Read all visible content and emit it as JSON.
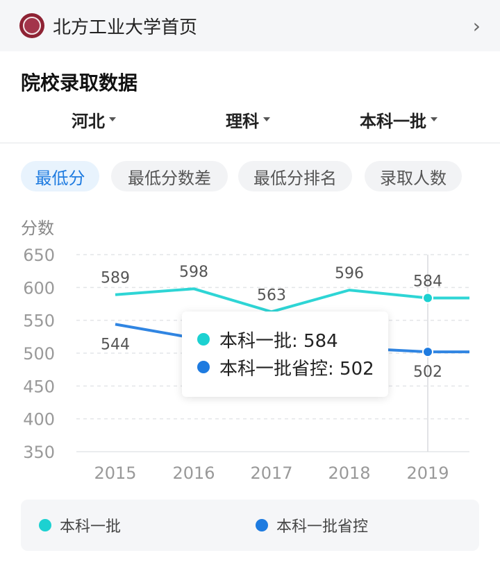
{
  "header": {
    "title": "北方工业大学首页",
    "logo_icon": "university-seal-icon",
    "chevron_icon": "chevron-right-icon"
  },
  "section": {
    "title": "院校录取数据"
  },
  "filters": [
    {
      "label": "河北"
    },
    {
      "label": "理科"
    },
    {
      "label": "本科一批"
    }
  ],
  "tabs": [
    {
      "label": "最低分",
      "active": true
    },
    {
      "label": "最低分数差",
      "active": false
    },
    {
      "label": "最低分排名",
      "active": false
    },
    {
      "label": "录取人数",
      "active": false
    }
  ],
  "tooltip": {
    "rows": [
      {
        "label": "本科一批: 584",
        "color": "#1cd1d1"
      },
      {
        "label": "本科一批省控: 502",
        "color": "#1e7be0"
      }
    ]
  },
  "chart_data": {
    "type": "line",
    "ylabel": "分数",
    "x": [
      "2015",
      "2016",
      "2017",
      "2018",
      "2019"
    ],
    "ylim": [
      350,
      650
    ],
    "yticks": [
      650,
      600,
      550,
      500,
      450,
      400,
      350
    ],
    "series": [
      {
        "name": "本科一批",
        "values": [
          589,
          598,
          563,
          596,
          584
        ],
        "color": "#1cd1d1"
      },
      {
        "name": "本科一批省控",
        "values": [
          544,
          523,
          null,
          508,
          502
        ],
        "color": "#1e7be0"
      }
    ],
    "labels": {
      "本科一批": [
        "589",
        "598",
        "563",
        "596",
        "584"
      ],
      "本科一批省控": [
        "544",
        "",
        "",
        "",
        "502"
      ]
    },
    "highlight_index": 4,
    "grid": true,
    "legend_position": "bottom"
  },
  "legend": [
    {
      "label": "本科一批",
      "color": "#1cd1d1"
    },
    {
      "label": "本科一批省控",
      "color": "#1e7be0"
    }
  ]
}
